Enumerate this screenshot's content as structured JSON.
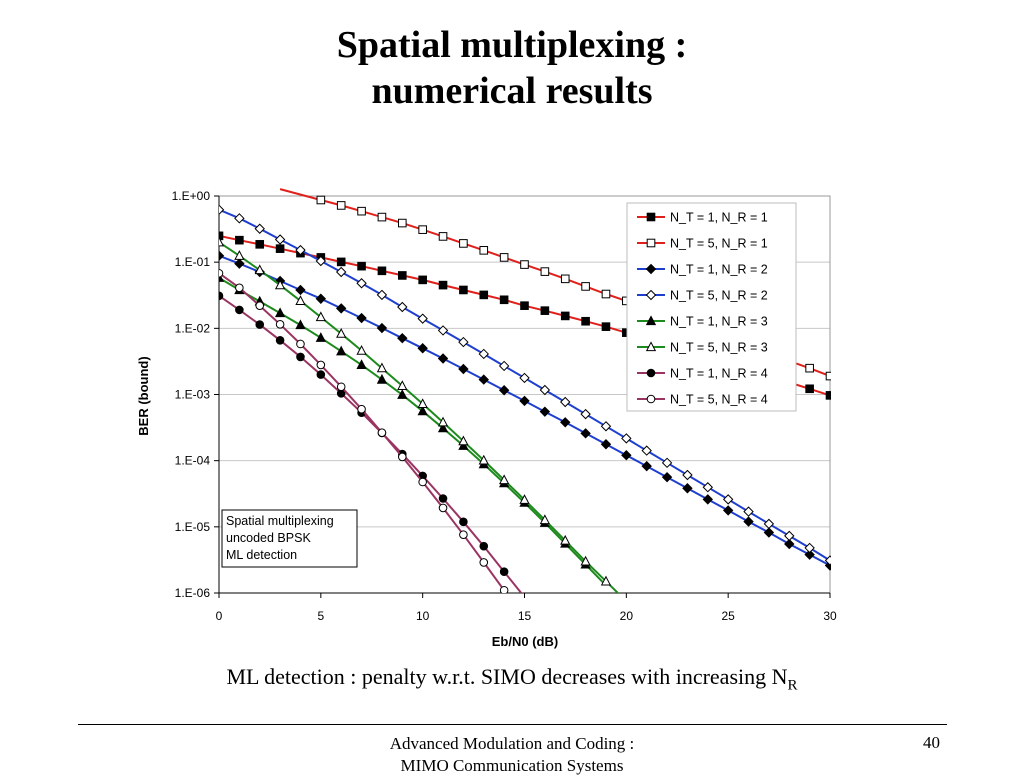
{
  "slide": {
    "title_line1": "Spatial multiplexing :",
    "title_line2": "numerical results",
    "caption_text": "ML detection : penalty w.r.t. SIMO decreases with increasing N",
    "caption_sub": "R",
    "footer_line1": "Advanced Modulation and Coding :",
    "footer_line2": "MIMO Communication Systems",
    "page_number": "40"
  },
  "chart_data": {
    "type": "line",
    "title": "",
    "xlabel": "Eb/N0 (dB)",
    "ylabel": "BER (bound)",
    "x_ticks": [
      "0",
      "5",
      "10",
      "15",
      "20",
      "25",
      "30"
    ],
    "y_ticks": [
      "1.E+00",
      "1.E-01",
      "1.E-02",
      "1.E-03",
      "1.E-04",
      "1.E-05",
      "1.E-06"
    ],
    "xlim": [
      0,
      30
    ],
    "ylim": [
      1e-06,
      1
    ],
    "y_scale": "log",
    "grid": "horizontal",
    "legend_position": "top-right",
    "annotation_lines": [
      "Spatial multiplexing",
      "uncoded BPSK",
      "ML detection"
    ],
    "series": [
      {
        "name": "N_T = 1, N_R = 1",
        "line_color": "#e0201b",
        "marker": "square",
        "filled": true,
        "x": [
          0,
          1,
          2,
          3,
          4,
          5,
          6,
          7,
          8,
          9,
          10,
          11,
          12,
          13,
          14,
          15,
          16,
          17,
          18,
          19,
          20,
          21,
          22,
          23,
          24,
          25,
          26,
          27,
          28,
          29,
          30
        ],
        "y": [
          0.25,
          0.215,
          0.186,
          0.16,
          0.137,
          0.118,
          0.101,
          0.087,
          0.074,
          0.063,
          0.054,
          0.045,
          0.038,
          0.032,
          0.027,
          0.022,
          0.0185,
          0.0154,
          0.0128,
          0.0106,
          0.0086,
          0.007,
          0.0057,
          0.0046,
          0.0037,
          0.003,
          0.0024,
          0.0019,
          0.00152,
          0.00122,
          0.00097
        ]
      },
      {
        "name": "N_T = 5, N_R = 1",
        "line_color": "#e0201b",
        "marker": "square",
        "filled": false,
        "x": [
          5,
          6,
          7,
          8,
          9,
          10,
          11,
          12,
          13,
          14,
          15,
          16,
          17,
          18,
          19,
          20,
          21,
          22,
          23,
          24,
          25,
          26,
          27,
          28,
          29,
          30
        ],
        "y": [
          0.87,
          0.72,
          0.59,
          0.48,
          0.39,
          0.31,
          0.245,
          0.192,
          0.151,
          0.118,
          0.092,
          0.072,
          0.056,
          0.043,
          0.033,
          0.026,
          0.02,
          0.0153,
          0.0118,
          0.0091,
          0.007,
          0.0054,
          0.0041,
          0.0032,
          0.0025,
          0.0019
        ]
      },
      {
        "name": "N_T = 1, N_R = 2",
        "line_color": "#1f3fcf",
        "marker": "diamond",
        "filled": true,
        "x": [
          0,
          1,
          2,
          3,
          4,
          5,
          6,
          7,
          8,
          9,
          10,
          11,
          12,
          13,
          14,
          15,
          16,
          17,
          18,
          19,
          20,
          21,
          22,
          23,
          24,
          25,
          26,
          27,
          28,
          29,
          30
        ],
        "y": [
          0.125,
          0.095,
          0.071,
          0.052,
          0.038,
          0.028,
          0.02,
          0.0143,
          0.0101,
          0.0071,
          0.005,
          0.0035,
          0.00243,
          0.00168,
          0.00116,
          0.0008,
          0.00055,
          0.00038,
          0.000259,
          0.000177,
          0.000121,
          8.26e-05,
          5.63e-05,
          3.83e-05,
          2.6e-05,
          1.77e-05,
          1.2e-05,
          8.2e-06,
          5.5e-06,
          3.8e-06,
          2.6e-06
        ]
      },
      {
        "name": "N_T = 5, N_R = 2",
        "line_color": "#1f3fcf",
        "marker": "diamond",
        "filled": false,
        "x": [
          0,
          1,
          2,
          3,
          4,
          5,
          6,
          7,
          8,
          9,
          10,
          11,
          12,
          13,
          14,
          15,
          16,
          17,
          18,
          19,
          20,
          21,
          22,
          23,
          24,
          25,
          26,
          27,
          28,
          29,
          30
        ],
        "y": [
          0.62,
          0.46,
          0.32,
          0.22,
          0.152,
          0.104,
          0.071,
          0.048,
          0.032,
          0.021,
          0.014,
          0.0093,
          0.0062,
          0.0041,
          0.0027,
          0.00178,
          0.00117,
          0.00077,
          0.000505,
          0.000331,
          0.000217,
          0.000142,
          9.28e-05,
          6.07e-05,
          3.97e-05,
          2.6e-05,
          1.7e-05,
          1.11e-05,
          7.3e-06,
          4.8e-06,
          3.1e-06
        ]
      },
      {
        "name": "N_T = 1, N_R = 3",
        "line_color": "#1d8a1d",
        "marker": "triangle",
        "filled": true,
        "x": [
          0,
          1,
          2,
          3,
          4,
          5,
          6,
          7,
          8,
          9,
          10,
          11,
          12,
          13,
          14,
          15,
          16,
          17,
          18
        ],
        "y": [
          0.058,
          0.038,
          0.0255,
          0.017,
          0.0112,
          0.0072,
          0.0045,
          0.0028,
          0.00168,
          0.00099,
          0.00056,
          0.00031,
          0.000168,
          8.87e-05,
          4.58e-05,
          2.32e-05,
          1.15e-05,
          5.6e-06,
          2.7e-06
        ]
      },
      {
        "name": "N_T = 5, N_R = 3",
        "line_color": "#1d8a1d",
        "marker": "triangle",
        "filled": false,
        "x": [
          0,
          1,
          2,
          3,
          4,
          5,
          6,
          7,
          8,
          9,
          10,
          11,
          12,
          13,
          14,
          15,
          16,
          17,
          18,
          19
        ],
        "y": [
          0.2,
          0.125,
          0.076,
          0.045,
          0.026,
          0.0148,
          0.0083,
          0.0046,
          0.0025,
          0.00135,
          0.00072,
          0.00038,
          0.000197,
          0.000101,
          5.1e-05,
          2.56e-05,
          1.27e-05,
          6.2e-06,
          3e-06,
          1.5e-06
        ]
      },
      {
        "name": "N_T = 1, N_R = 4",
        "line_color": "#9a3462",
        "marker": "circle",
        "filled": true,
        "x": [
          0,
          1,
          2,
          3,
          4,
          5,
          6,
          7,
          8,
          9,
          10,
          11,
          12,
          13,
          14
        ],
        "y": [
          0.031,
          0.019,
          0.0114,
          0.0066,
          0.0037,
          0.002,
          0.00104,
          0.00053,
          0.000262,
          0.000126,
          5.89e-05,
          2.68e-05,
          1.19e-05,
          5.1e-06,
          2.1e-06
        ]
      },
      {
        "name": "N_T = 5, N_R = 4",
        "line_color": "#9a3462",
        "marker": "circle",
        "filled": false,
        "x": [
          0,
          1,
          2,
          3,
          4,
          5,
          6,
          7,
          8,
          9,
          10,
          11,
          12,
          13,
          14
        ],
        "y": [
          0.068,
          0.041,
          0.022,
          0.0115,
          0.0058,
          0.0028,
          0.00131,
          0.0006,
          0.000265,
          0.000114,
          4.76e-05,
          1.93e-05,
          7.6e-06,
          2.9e-06,
          1.1e-06
        ]
      }
    ]
  }
}
